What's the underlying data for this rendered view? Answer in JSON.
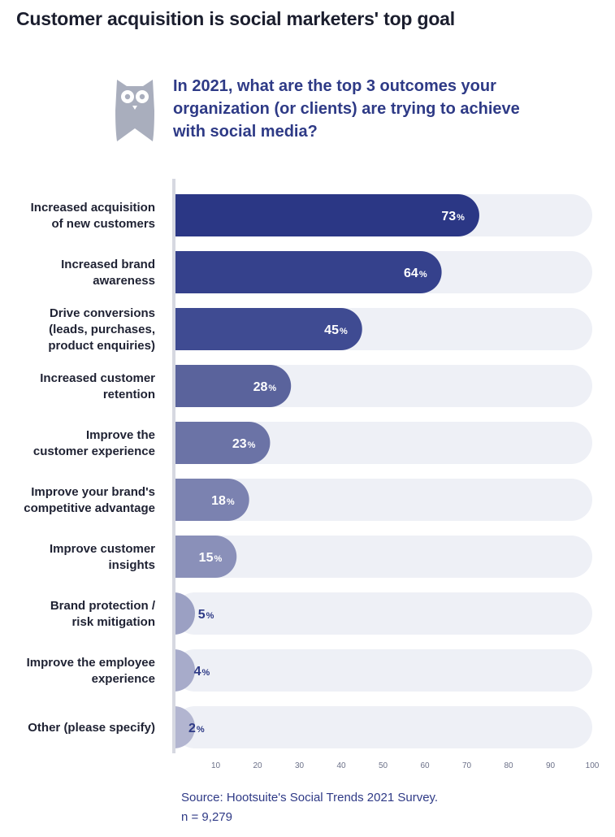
{
  "header": {
    "title": "Customer acquisition is social marketers' top goal",
    "question_lines": [
      "In 2021, what are the top 3 outcomes your",
      "organization (or clients) are trying to achieve",
      "with social media?"
    ]
  },
  "chart_data": {
    "type": "bar",
    "orientation": "horizontal",
    "categories": [
      [
        "Increased acquisition",
        "of new customers"
      ],
      [
        "Increased brand",
        "awareness"
      ],
      [
        "Drive conversions",
        "(leads, purchases,",
        "product enquiries)"
      ],
      [
        "Increased customer",
        "retention"
      ],
      [
        "Improve the",
        "customer experience"
      ],
      [
        "Improve your brand's",
        "competitive advantage"
      ],
      [
        "Improve customer",
        "insights"
      ],
      [
        "Brand protection /",
        "risk mitigation"
      ],
      [
        "Improve the employee",
        "experience"
      ],
      [
        "Other (please specify)"
      ]
    ],
    "values": [
      73,
      64,
      45,
      28,
      23,
      18,
      15,
      5,
      4,
      2
    ],
    "value_suffix": "%",
    "xlim": [
      0,
      100
    ],
    "x_ticks": [
      10,
      20,
      30,
      40,
      50,
      60,
      70,
      80,
      90,
      100
    ],
    "bar_colors": [
      "#2b3785",
      "#35418c",
      "#3f4b92",
      "#5a639c",
      "#6b73a6",
      "#7b82b0",
      "#8a90b9",
      "#9ba0c3",
      "#a7abca",
      "#b2b5d0"
    ],
    "track_color": "#eef0f6",
    "axis_color": "#d6d8e1",
    "inside_label_color": "#ffffff",
    "outside_label_color": "#2e3a86",
    "grid": false
  },
  "source": {
    "line1": "Source:  Hootsuite's Social Trends 2021 Survey.",
    "line2": "n = 9,279"
  }
}
